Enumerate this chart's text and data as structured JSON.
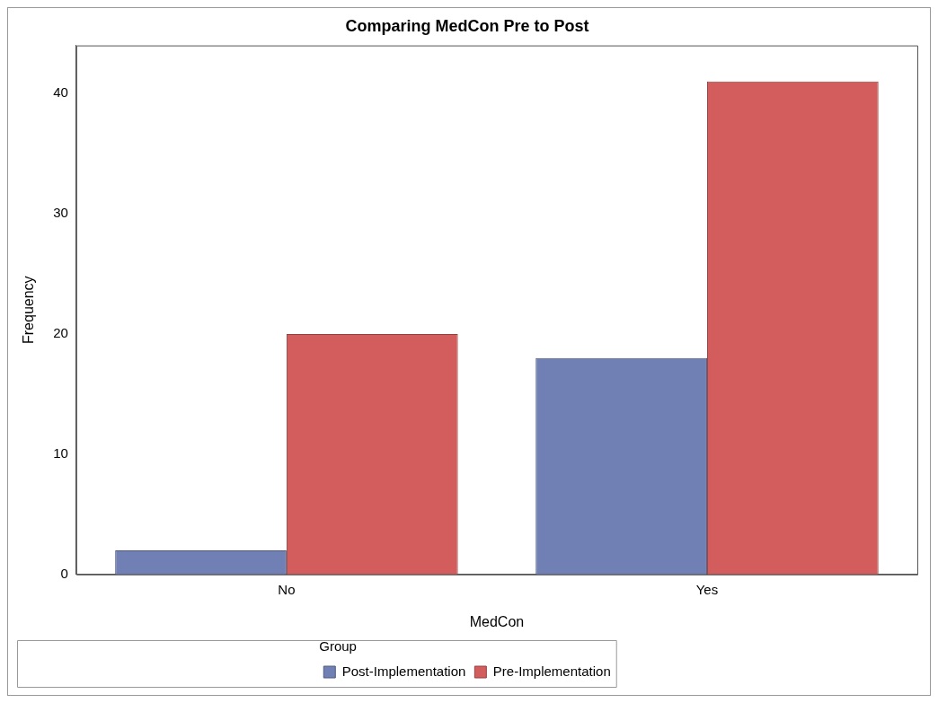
{
  "chart_data": {
    "type": "bar",
    "title": "Comparing MedCon Pre to Post",
    "xlabel": "MedCon",
    "ylabel": "Frequency",
    "legend_title": "Group",
    "categories": [
      "No",
      "Yes"
    ],
    "series": [
      {
        "name": "Post-Implementation",
        "color": "#7080b4",
        "values": [
          2,
          18
        ]
      },
      {
        "name": "Pre-Implementation",
        "color": "#d35d5c",
        "values": [
          20,
          41
        ]
      }
    ],
    "ylim": [
      0,
      44
    ],
    "yticks": [
      0,
      10,
      20,
      30,
      40
    ],
    "grid": false,
    "legend": "bottom"
  }
}
